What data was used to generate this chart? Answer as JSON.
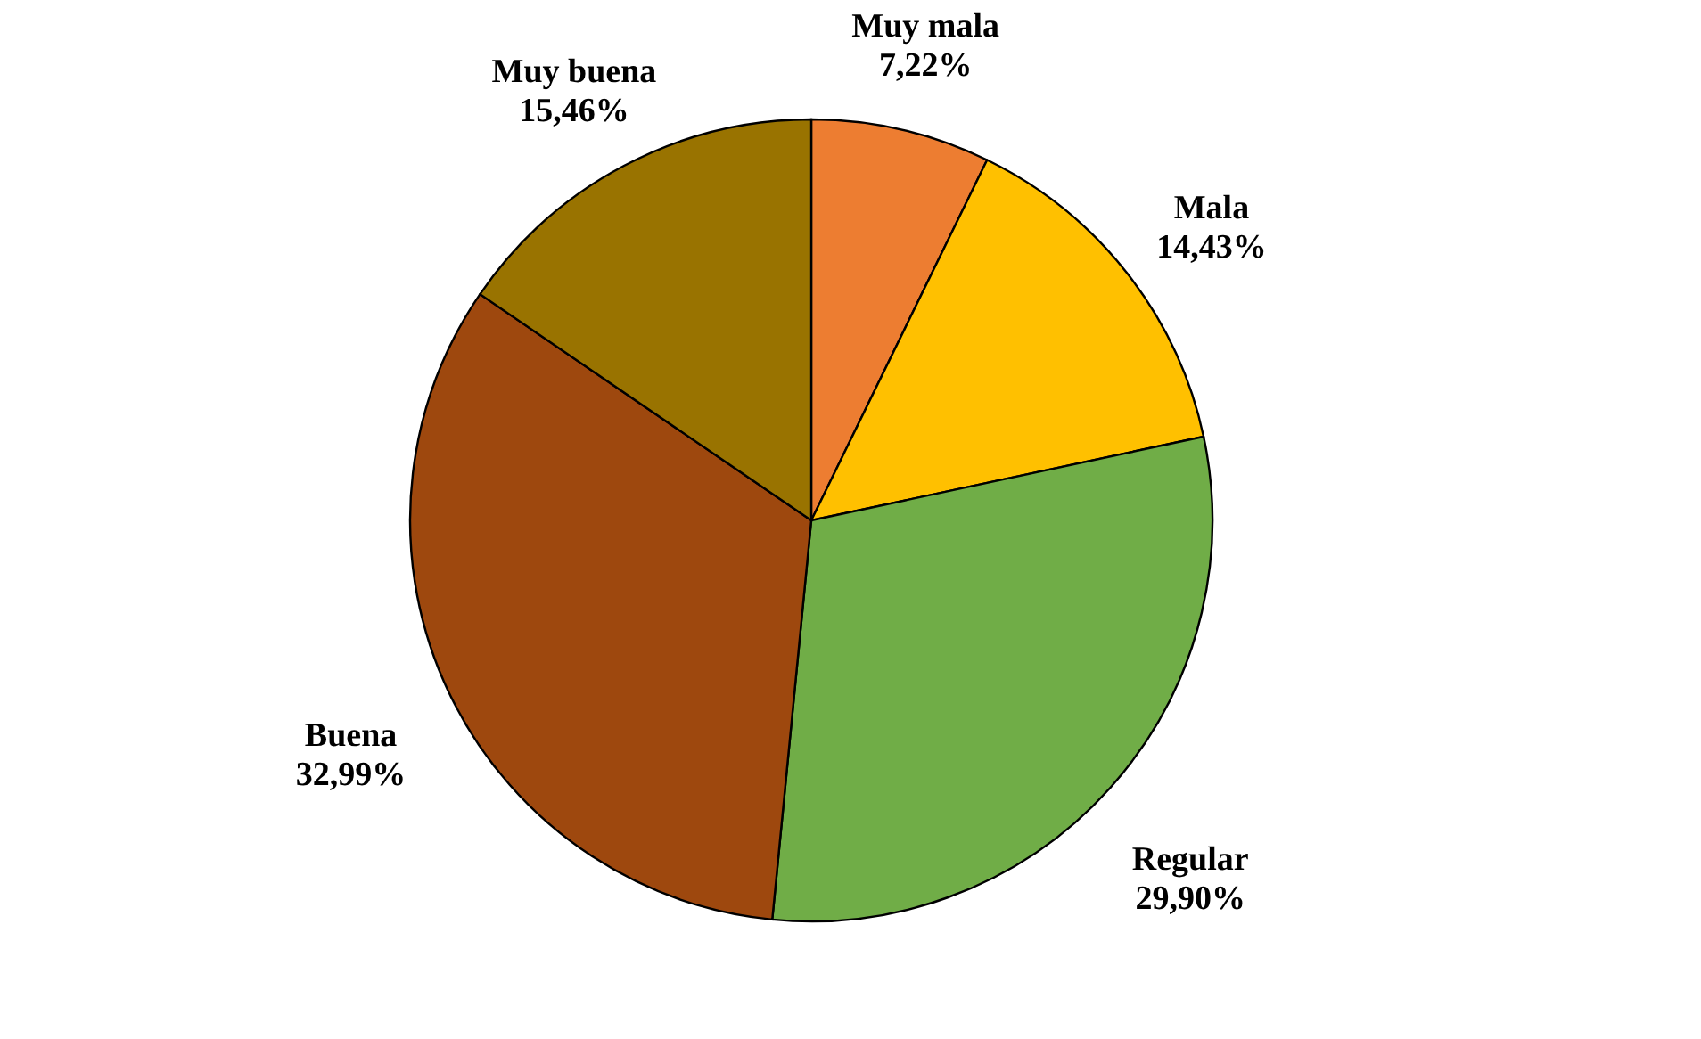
{
  "chart_data": {
    "type": "pie",
    "categories": [
      "Muy mala",
      "Mala",
      "Regular",
      "Buena",
      "Muy buena"
    ],
    "values": [
      7.22,
      14.43,
      29.9,
      32.99,
      15.46
    ],
    "value_labels": [
      "7,22%",
      "14,43%",
      "29,90%",
      "32,99%",
      "15,46%"
    ],
    "colors": [
      "#ed7d31",
      "#ffc000",
      "#70ad47",
      "#9e480e",
      "#997300"
    ],
    "legend": false
  }
}
